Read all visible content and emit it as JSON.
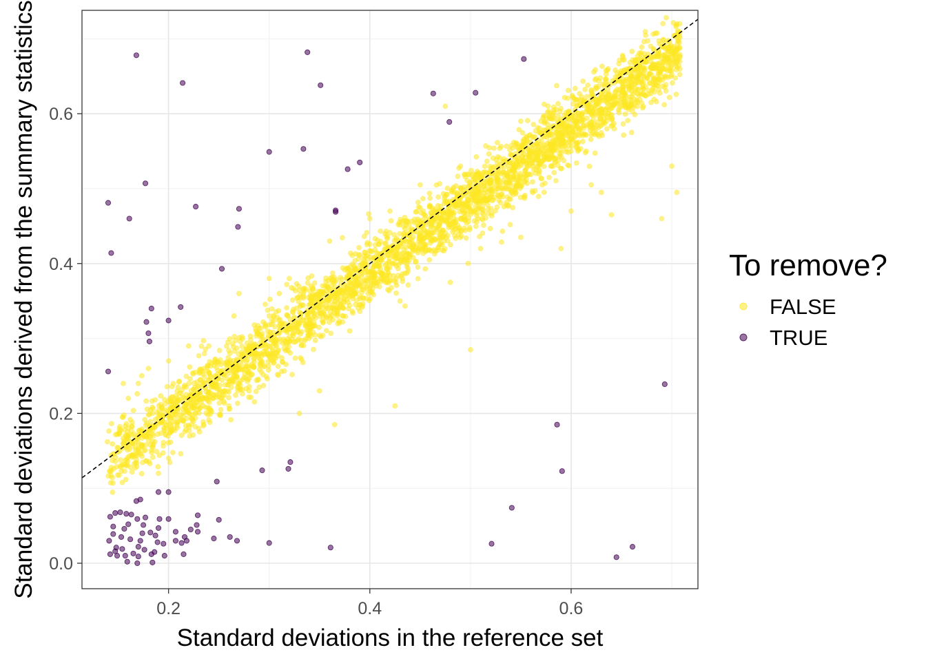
{
  "chart_data": {
    "type": "scatter",
    "title": "",
    "xlabel": "Standard deviations in the reference set",
    "ylabel": "Standard deviations derived from the summary statistics",
    "xlim": [
      0.114,
      0.726
    ],
    "ylim": [
      -0.034,
      0.738
    ],
    "x_ticks": [
      0.2,
      0.4,
      0.6
    ],
    "x_tick_labels": [
      "0.2",
      "0.4",
      "0.6"
    ],
    "y_ticks": [
      0.0,
      0.2,
      0.4,
      0.6
    ],
    "y_tick_labels": [
      "0.0",
      "0.2",
      "0.4",
      "0.6"
    ],
    "x_minor_ticks": [
      0.1,
      0.3,
      0.5,
      0.7
    ],
    "y_minor_ticks": [
      0.1,
      0.3,
      0.5,
      0.7
    ],
    "grid": true,
    "reference_line": {
      "type": "identity",
      "style": "dashed",
      "color": "#000000"
    },
    "legend": {
      "title": "To remove?",
      "position": "right",
      "entries": [
        {
          "label": "FALSE",
          "color": "#FDE725"
        },
        {
          "label": "TRUE",
          "color": "#440154"
        }
      ]
    },
    "series": [
      {
        "name": "FALSE",
        "color": "#FDE725",
        "opacity": 0.55,
        "bulk_band": {
          "description": "dense cloud of points following the identity line",
          "x_range": [
            0.138,
            0.708
          ],
          "center_line": {
            "slope": 0.97,
            "intercept": 0.0
          },
          "spread_sd": 0.022
        },
        "points": [
          [
            0.475,
            0.61
          ],
          [
            0.5,
            0.285
          ],
          [
            0.425,
            0.21
          ],
          [
            0.365,
            0.185
          ],
          [
            0.59,
            0.42
          ],
          [
            0.69,
            0.46
          ],
          [
            0.7,
            0.53
          ],
          [
            0.705,
            0.495
          ],
          [
            0.64,
            0.465
          ],
          [
            0.63,
            0.495
          ],
          [
            0.6,
            0.47
          ],
          [
            0.62,
            0.505
          ],
          [
            0.55,
            0.435
          ],
          [
            0.6,
            0.55
          ],
          [
            0.66,
            0.575
          ],
          [
            0.48,
            0.375
          ],
          [
            0.51,
            0.42
          ],
          [
            0.33,
            0.2
          ],
          [
            0.35,
            0.23
          ],
          [
            0.24,
            0.29
          ],
          [
            0.32,
            0.38
          ],
          [
            0.3,
            0.38
          ],
          [
            0.27,
            0.36
          ],
          [
            0.2,
            0.27
          ],
          [
            0.155,
            0.24
          ],
          [
            0.16,
            0.22
          ],
          [
            0.17,
            0.24
          ],
          [
            0.18,
            0.26
          ],
          [
            0.22,
            0.29
          ],
          [
            0.265,
            0.33
          ],
          [
            0.3,
            0.33
          ],
          [
            0.31,
            0.36
          ],
          [
            0.36,
            0.43
          ],
          [
            0.4,
            0.46
          ],
          [
            0.42,
            0.47
          ],
          [
            0.45,
            0.505
          ],
          [
            0.49,
            0.53
          ],
          [
            0.55,
            0.59
          ],
          [
            0.57,
            0.59
          ],
          [
            0.5,
            0.48
          ],
          [
            0.43,
            0.35
          ],
          [
            0.38,
            0.31
          ],
          [
            0.28,
            0.23
          ],
          [
            0.26,
            0.21
          ],
          [
            0.23,
            0.18
          ],
          [
            0.2,
            0.14
          ],
          [
            0.19,
            0.12
          ],
          [
            0.62,
            0.6
          ],
          [
            0.66,
            0.63
          ],
          [
            0.58,
            0.53
          ]
        ]
      },
      {
        "name": "TRUE",
        "color": "#440154",
        "opacity": 0.55,
        "points": [
          [
            0.168,
            0.678
          ],
          [
            0.338,
            0.682
          ],
          [
            0.553,
            0.673
          ],
          [
            0.214,
            0.641
          ],
          [
            0.351,
            0.638
          ],
          [
            0.463,
            0.627
          ],
          [
            0.505,
            0.628
          ],
          [
            0.479,
            0.589
          ],
          [
            0.334,
            0.553
          ],
          [
            0.3,
            0.549
          ],
          [
            0.39,
            0.535
          ],
          [
            0.378,
            0.526
          ],
          [
            0.177,
            0.507
          ],
          [
            0.14,
            0.481
          ],
          [
            0.227,
            0.476
          ],
          [
            0.27,
            0.473
          ],
          [
            0.366,
            0.471
          ],
          [
            0.366,
            0.469
          ],
          [
            0.161,
            0.46
          ],
          [
            0.269,
            0.449
          ],
          [
            0.143,
            0.414
          ],
          [
            0.253,
            0.393
          ],
          [
            0.212,
            0.342
          ],
          [
            0.183,
            0.34
          ],
          [
            0.178,
            0.322
          ],
          [
            0.2,
            0.324
          ],
          [
            0.18,
            0.307
          ],
          [
            0.181,
            0.296
          ],
          [
            0.14,
            0.256
          ],
          [
            0.693,
            0.239
          ],
          [
            0.586,
            0.185
          ],
          [
            0.321,
            0.135
          ],
          [
            0.319,
            0.126
          ],
          [
            0.293,
            0.124
          ],
          [
            0.591,
            0.123
          ],
          [
            0.248,
            0.109
          ],
          [
            0.2,
            0.095
          ],
          [
            0.19,
            0.095
          ],
          [
            0.172,
            0.085
          ],
          [
            0.168,
            0.083
          ],
          [
            0.541,
            0.074
          ],
          [
            0.25,
            0.058
          ],
          [
            0.229,
            0.064
          ],
          [
            0.147,
            0.067
          ],
          [
            0.142,
            0.062
          ],
          [
            0.152,
            0.068
          ],
          [
            0.158,
            0.066
          ],
          [
            0.163,
            0.065
          ],
          [
            0.177,
            0.061
          ],
          [
            0.169,
            0.059
          ],
          [
            0.191,
            0.059
          ],
          [
            0.2,
            0.059
          ],
          [
            0.145,
            0.049
          ],
          [
            0.156,
            0.046
          ],
          [
            0.16,
            0.052
          ],
          [
            0.175,
            0.051
          ],
          [
            0.228,
            0.051
          ],
          [
            0.222,
            0.045
          ],
          [
            0.207,
            0.042
          ],
          [
            0.182,
            0.041
          ],
          [
            0.145,
            0.039
          ],
          [
            0.141,
            0.03
          ],
          [
            0.162,
            0.032
          ],
          [
            0.172,
            0.03
          ],
          [
            0.187,
            0.037
          ],
          [
            0.229,
            0.042
          ],
          [
            0.216,
            0.035
          ],
          [
            0.261,
            0.035
          ],
          [
            0.268,
            0.03
          ],
          [
            0.245,
            0.033
          ],
          [
            0.218,
            0.03
          ],
          [
            0.189,
            0.028
          ],
          [
            0.195,
            0.026
          ],
          [
            0.148,
            0.021
          ],
          [
            0.154,
            0.019
          ],
          [
            0.17,
            0.022
          ],
          [
            0.176,
            0.018
          ],
          [
            0.186,
            0.015
          ],
          [
            0.142,
            0.012
          ],
          [
            0.149,
            0.01
          ],
          [
            0.157,
            0.01
          ],
          [
            0.165,
            0.013
          ],
          [
            0.183,
            0.012
          ],
          [
            0.196,
            0.01
          ],
          [
            0.147,
            0.016
          ],
          [
            0.213,
            0.027
          ],
          [
            0.207,
            0.03
          ],
          [
            0.159,
            0.002
          ],
          [
            0.169,
            0.0
          ],
          [
            0.184,
            0.001
          ],
          [
            0.17,
            0.009
          ],
          [
            0.3,
            0.027
          ],
          [
            0.361,
            0.021
          ],
          [
            0.521,
            0.026
          ],
          [
            0.661,
            0.022
          ],
          [
            0.645,
            0.008
          ],
          [
            0.215,
            0.012
          ],
          [
            0.153,
            0.035
          ],
          [
            0.19,
            0.047
          ],
          [
            0.174,
            0.04
          ]
        ]
      }
    ]
  }
}
